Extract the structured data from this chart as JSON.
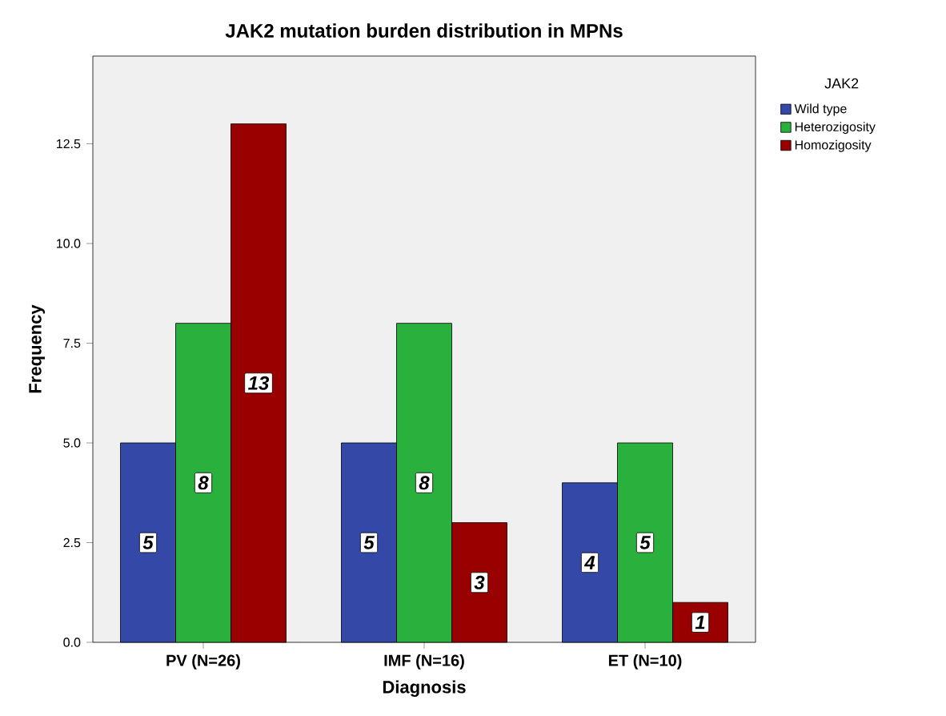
{
  "chart_data": {
    "type": "bar",
    "title": "JAK2 mutation burden distribution in MPNs",
    "xlabel": "Diagnosis",
    "ylabel": "Frequency",
    "legend_title": "JAK2",
    "categories": [
      "PV (N=26)",
      "IMF (N=16)",
      "ET (N=10)"
    ],
    "series": [
      {
        "name": "Wild type",
        "color": "#3448a8",
        "values": [
          5,
          5,
          4
        ]
      },
      {
        "name": "Heterozigosity",
        "color": "#2ab03c",
        "values": [
          8,
          8,
          5
        ]
      },
      {
        "name": "Homozigosity",
        "color": "#990000",
        "values": [
          13,
          3,
          1
        ]
      }
    ],
    "ylim": [
      0,
      14.7
    ],
    "yticks": [
      {
        "value": 0,
        "label": "0.0"
      },
      {
        "value": 2.5,
        "label": "2.5"
      },
      {
        "value": 5,
        "label": "5.0"
      },
      {
        "value": 7.5,
        "label": "7.5"
      },
      {
        "value": 10,
        "label": "10.0"
      },
      {
        "value": 12.5,
        "label": "12.5"
      }
    ],
    "data_labels": true,
    "legend": "top right",
    "grid": false
  }
}
